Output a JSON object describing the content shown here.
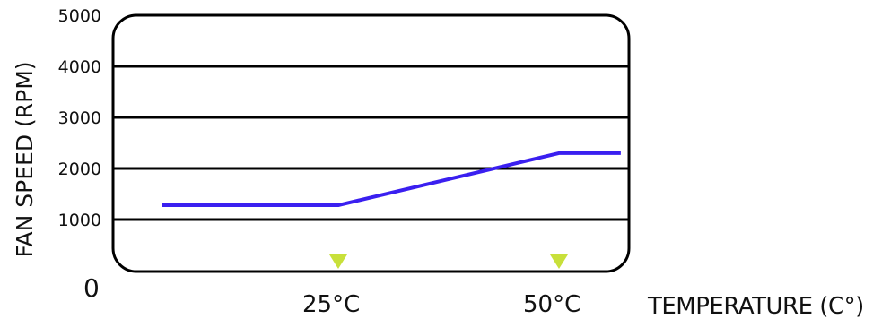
{
  "chart_data": {
    "type": "line",
    "xlabel": "TEMPERATURE (C°)",
    "ylabel": "FAN SPEED (RPM)",
    "ylim": [
      0,
      5000
    ],
    "yticks": [
      "1000",
      "2000",
      "3000",
      "4000",
      "5000"
    ],
    "y_origin_label": "0",
    "x_markers": [
      {
        "label": "25°C",
        "x": 25,
        "color": "#c8e03a"
      },
      {
        "label": "50°C",
        "x": 50,
        "color": "#c8e03a"
      }
    ],
    "series": [
      {
        "color": "#3a1ff0",
        "points": [
          {
            "x": 5,
            "y": 1280
          },
          {
            "x": 25,
            "y": 1280
          },
          {
            "x": 50,
            "y": 2300
          },
          {
            "x": 57,
            "y": 2300
          }
        ]
      }
    ],
    "grid": true,
    "legend": "none"
  }
}
